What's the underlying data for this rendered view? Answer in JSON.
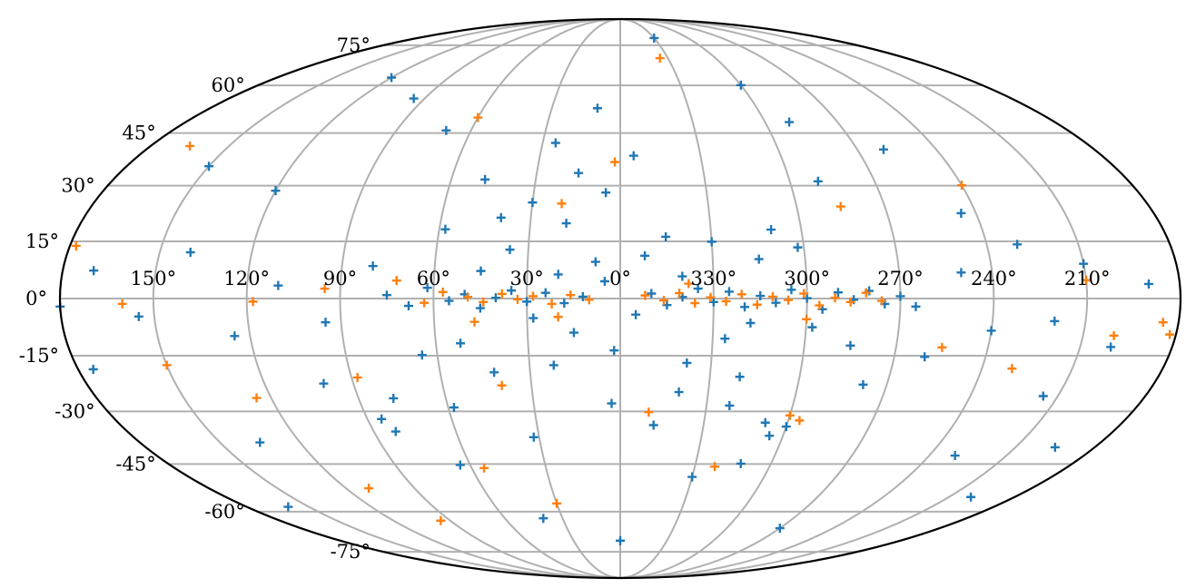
{
  "chart_data": {
    "type": "scatter",
    "projection": "mollweide",
    "coordinate_system": "galactic",
    "grid": true,
    "lon_direction": "decreasing-left-to-right",
    "longitude_ticks": [
      "150°",
      "120°",
      "90°",
      "60°",
      "30°",
      "0°",
      "330°",
      "300°",
      "270°",
      "240°",
      "210°"
    ],
    "latitude_ticks": [
      "75°",
      "60°",
      "45°",
      "30°",
      "15°",
      "0°",
      "-15°",
      "-30°",
      "-45°",
      "-60°",
      "-75°"
    ],
    "series": [
      {
        "color": "#1f77b4",
        "marker": "+",
        "points": [
          [
            12,
            0.5
          ],
          [
            18,
            -1.2
          ],
          [
            24,
            1.5
          ],
          [
            30,
            -0.8
          ],
          [
            35,
            2.1
          ],
          [
            40,
            0.2
          ],
          [
            45,
            -2.5
          ],
          [
            50,
            1.1
          ],
          [
            55,
            -0.6
          ],
          [
            62,
            2.8
          ],
          [
            68,
            -1.9
          ],
          [
            75,
            0.9
          ],
          [
            350,
            1.3
          ],
          [
            345,
            -1.7
          ],
          [
            340,
            0.4
          ],
          [
            335,
            2.6
          ],
          [
            330,
            -0.9
          ],
          [
            325,
            1.8
          ],
          [
            320,
            -2.2
          ],
          [
            315,
            0.7
          ],
          [
            310,
            -1.1
          ],
          [
            305,
            2.3
          ],
          [
            300,
            0.1
          ],
          [
            295,
            -2.8
          ],
          [
            290,
            1.6
          ],
          [
            285,
            -0.3
          ],
          [
            280,
            2.0
          ],
          [
            275,
            -1.4
          ],
          [
            270,
            0.6
          ],
          [
            265,
            -2.1
          ],
          [
            5,
            4.5
          ],
          [
            355,
            -4.2
          ],
          [
            20,
            6.3
          ],
          [
            340,
            5.8
          ],
          [
            28,
            -5.1
          ],
          [
            318,
            -6.4
          ],
          [
            45,
            7.2
          ],
          [
            298,
            -7.5
          ],
          [
            15,
            -8.9
          ],
          [
            8,
            9.6
          ],
          [
            352,
            11.2
          ],
          [
            326,
            -10.5
          ],
          [
            36,
            12.8
          ],
          [
            302,
            13.4
          ],
          [
            52,
            -11.7
          ],
          [
            65,
            -14.8
          ],
          [
            285,
            -12.3
          ],
          [
            345,
            16.2
          ],
          [
            22,
            -17.5
          ],
          [
            310,
            18.1
          ],
          [
            40,
            21.3
          ],
          [
            320,
            -20.6
          ],
          [
            30,
            25.4
          ],
          [
            5,
            28.1
          ],
          [
            340,
            -24.7
          ],
          [
            15,
            33.5
          ],
          [
            290,
            31.2
          ],
          [
            58,
            -28.9
          ],
          [
            348,
            -33.8
          ],
          [
            32,
            -37.2
          ],
          [
            80,
            8.5
          ],
          [
            95,
            -6.2
          ],
          [
            110,
            3.4
          ],
          [
            125,
            -9.8
          ],
          [
            140,
            12.1
          ],
          [
            155,
            -4.7
          ],
          [
            170,
            7.3
          ],
          [
            175,
            -18.6
          ],
          [
            250,
            6.8
          ],
          [
            240,
            -8.4
          ],
          [
            230,
            14.2
          ],
          [
            220,
            -5.9
          ],
          [
            210,
            9.1
          ],
          [
            200,
            -12.7
          ],
          [
            190,
            3.8
          ],
          [
            260,
            -15.3
          ],
          [
            245,
            22.5
          ],
          [
            215,
            -25.8
          ],
          [
            100,
            -22.4
          ],
          [
            120,
            28.6
          ],
          [
            85,
            -32.1
          ],
          [
            150,
            35.4
          ],
          [
            135,
            -38.7
          ],
          [
            260,
            40.2
          ],
          [
            230,
            -42.5
          ],
          [
            70,
            45.8
          ],
          [
            290,
            48.3
          ],
          [
            10,
            52.6
          ],
          [
            330,
            -48.9
          ],
          [
            200,
            -55.2
          ],
          [
            95,
            55.7
          ],
          [
            160,
            -58.4
          ],
          [
            300,
            60.1
          ],
          [
            40,
            -62.3
          ],
          [
            270,
            -65.8
          ],
          [
            120,
            62.7
          ],
          [
            0,
            -70.5
          ],
          [
            330,
            78.2
          ],
          [
            180,
            -2.1
          ],
          [
            195,
            -40.1
          ],
          [
            64,
            -45.3
          ],
          [
            82,
            -35.6
          ],
          [
            78,
            -26.4
          ],
          [
            300,
            -34.2
          ],
          [
            305,
            -36.8
          ],
          [
            308,
            -33.1
          ],
          [
            312,
            -44.9
          ],
          [
            48,
            31.7
          ],
          [
            25,
            42.1
          ],
          [
            355,
            38.4
          ],
          [
            338,
            -16.9
          ],
          [
            322,
            -28.4
          ],
          [
            278,
            -22.7
          ],
          [
            3,
            -27.8
          ],
          [
            58,
            18.2
          ],
          [
            42,
            -19.4
          ],
          [
            18,
            19.8
          ],
          [
            2,
            -13.6
          ],
          [
            330,
            14.9
          ],
          [
            315,
            10.3
          ]
        ]
      },
      {
        "color": "#ff7f0e",
        "marker": "+",
        "points": [
          [
            10,
            -0.3
          ],
          [
            16,
            0.9
          ],
          [
            22,
            -1.4
          ],
          [
            28,
            0.6
          ],
          [
            33,
            -0.2
          ],
          [
            38,
            1.2
          ],
          [
            44,
            -0.9
          ],
          [
            49,
            0.4
          ],
          [
            57,
            1.7
          ],
          [
            63,
            -1.1
          ],
          [
            352,
            0.8
          ],
          [
            346,
            -0.5
          ],
          [
            341,
            1.4
          ],
          [
            336,
            -1.2
          ],
          [
            331,
            0.3
          ],
          [
            326,
            -0.7
          ],
          [
            321,
            1.1
          ],
          [
            316,
            -1.6
          ],
          [
            311,
            0.5
          ],
          [
            306,
            -0.4
          ],
          [
            301,
            1.3
          ],
          [
            296,
            -1.8
          ],
          [
            291,
            0.2
          ],
          [
            286,
            -0.9
          ],
          [
            281,
            1.5
          ],
          [
            276,
            -0.6
          ],
          [
            20,
            -4.8
          ],
          [
            338,
            3.9
          ],
          [
            300,
            -5.4
          ],
          [
            47,
            -6.1
          ],
          [
            72,
            4.7
          ],
          [
            95,
            2.6
          ],
          [
            118,
            -0.8
          ],
          [
            160,
            -1.4
          ],
          [
            185,
            -6.2
          ],
          [
            182,
            -9.4
          ],
          [
            178,
            13.8
          ],
          [
            150,
            -17.5
          ],
          [
            88,
            -20.8
          ],
          [
            40,
            -22.9
          ],
          [
            20,
            25.1
          ],
          [
            2,
            36.6
          ],
          [
            350,
            -30.2
          ],
          [
            296,
            -32.5
          ],
          [
            300,
            -31.1
          ],
          [
            322,
            -45.8
          ],
          [
            55,
            -46.2
          ],
          [
            110,
            -52.4
          ],
          [
            95,
            -63.1
          ],
          [
            30,
            -57.3
          ],
          [
            335,
            69.8
          ],
          [
            60,
            49.7
          ],
          [
            285,
            24.3
          ],
          [
            230,
            -18.4
          ],
          [
            210,
            4.8
          ],
          [
            200,
            -9.7
          ],
          [
            125,
            -26.3
          ],
          [
            255,
            -12.8
          ],
          [
            240,
            30.1
          ],
          [
            165,
            41.2
          ]
        ]
      }
    ]
  }
}
